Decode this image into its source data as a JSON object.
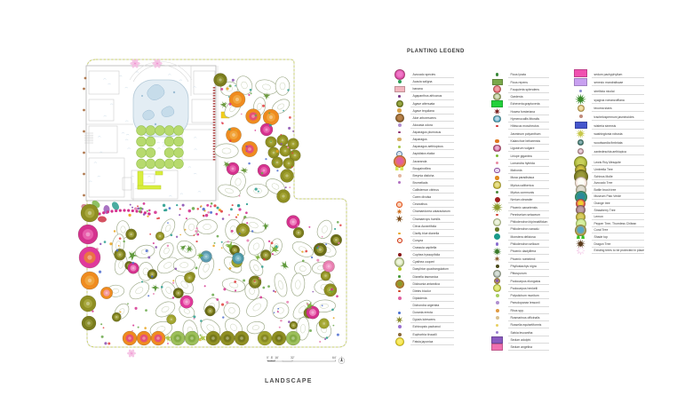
{
  "legend": {
    "title": "PLANTING LEGEND",
    "columns": [
      {
        "entries": [
          {
            "label": "Avocado species",
            "sym": "tree",
            "c": "#d93ba0",
            "c2": "#f078c8",
            "s": 10
          },
          {
            "label": "Acacia saligna",
            "sym": "dot",
            "c": "#2e9e57",
            "s": 4
          },
          {
            "label": "banana",
            "sym": "rect",
            "c": "#f2b6bf",
            "s": 10
          },
          {
            "label": "Agapanthus africanus",
            "sym": "dot",
            "c": "#7a3a8a",
            "s": 2.5
          },
          {
            "label": "Agave attenuata",
            "sym": "tree",
            "c": "#6b7c1f",
            "c2": "#9aa844",
            "s": 6
          },
          {
            "label": "Agave tequilana",
            "sym": "dot",
            "c": "#d9a24a",
            "s": 4.5
          },
          {
            "label": "Aloe arborescens",
            "sym": "tree",
            "c": "#8a5a2a",
            "c2": "#b8824a",
            "s": 8
          },
          {
            "label": "Alocasia odora",
            "sym": "dot",
            "c": "#b18fd0",
            "s": 4
          },
          {
            "label": "Asparagus plumosus",
            "sym": "dot",
            "c": "#8a2a6a",
            "s": 2.5
          },
          {
            "label": "Asparagus",
            "sym": "dot",
            "c": "#d8b06a",
            "s": 4.5
          },
          {
            "label": "Asparagus aethiopicus",
            "sym": "dot",
            "c": "#a8c84a",
            "s": 3.5
          },
          {
            "label": "Aspidistra elatior",
            "sym": "ring",
            "c": "#5b7fa6",
            "c2": "#d8e4ee",
            "s": 5
          },
          {
            "label": "Jacaranda",
            "sym": "tree",
            "c": "#e8821e",
            "c2": "#e060a0",
            "s": 12
          },
          {
            "label": "Bougainvillea",
            "sym": "sq2",
            "c": "#d7e85a",
            "s": 9
          },
          {
            "label": "Breynia disticha",
            "sym": "dot",
            "c": "#e3b8a0",
            "s": 4
          },
          {
            "label": "Bromeliads",
            "sym": "dot",
            "c": "#b06fc0",
            "s": 3
          },
          {
            "label": "Callistemon citrinus",
            "sym": "none",
            "c": "#888888",
            "s": 0
          },
          {
            "label": "Carex divulsa",
            "sym": "none",
            "c": "#888888",
            "s": 0
          },
          {
            "label": "Ceanothus",
            "sym": "ring",
            "c": "#e04a10",
            "c2": "#f8d0b8",
            "s": 4.5
          },
          {
            "label": "Chamaedorea cataractarum",
            "sym": "star",
            "c": "#d07020",
            "s": 7
          },
          {
            "label": "Chamaerops humilis",
            "sym": "star",
            "c": "#7a4a1a",
            "s": 9
          },
          {
            "label": "Citrus Aurantifolia",
            "sym": "none",
            "c": "#888888",
            "s": 0
          },
          {
            "label": "Clarity blue dianella",
            "sym": "dot",
            "c": "#e8a21a",
            "s": 2.5
          },
          {
            "label": "Conyza",
            "sym": "ring",
            "c": "#d03010",
            "c2": "#f8e0d0",
            "s": 4
          },
          {
            "label": "Crassula capitella",
            "sym": "none",
            "c": "#888888",
            "s": 0
          },
          {
            "label": "Cuphea hyssopifolia",
            "sym": "dot",
            "c": "#8a1a1a",
            "s": 4
          },
          {
            "label": "Cyathea cooperi",
            "sym": "tree",
            "c": "#b8cc8a",
            "c2": "#eef4dc",
            "s": 9
          },
          {
            "label": "Dasylirion quadrangulatum",
            "sym": "dot",
            "c": "#b8c820",
            "s": 4
          },
          {
            "label": "Dianella tasmanica",
            "sym": "dot",
            "c": "#4a9a3a",
            "s": 2.5
          },
          {
            "label": "Dicksonia antarctica",
            "sym": "tree",
            "c": "#c87830",
            "c2": "#8a9a2a",
            "s": 8
          },
          {
            "label": "Dietes bicolor",
            "sym": "dot",
            "c": "#d04020",
            "s": 2.5
          },
          {
            "label": "Dipladenia",
            "sym": "dot",
            "c": "#e060a0",
            "s": 4
          },
          {
            "label": "Dichondra argentea",
            "sym": "none",
            "c": "#888888",
            "s": 0
          },
          {
            "label": "Duranta erecta",
            "sym": "dot",
            "c": "#4a6fd0",
            "s": 3
          },
          {
            "label": "Dypsis lutescens",
            "sym": "star",
            "c": "#8a8a2a",
            "s": 9
          },
          {
            "label": "Echinopsis pachanoi",
            "sym": "dot",
            "c": "#9a6fd0",
            "s": 4
          },
          {
            "label": "Euphorbia tirucalli",
            "sym": "dot",
            "c": "#8a6a3a",
            "s": 4
          },
          {
            "label": "Fatsia japonica",
            "sym": "tree",
            "c": "#f0d820",
            "c2": "#f8ec70",
            "s": 8
          }
        ]
      },
      {
        "entries": [
          {
            "label": "Ficus lyrata",
            "sym": "dot",
            "c": "#3a8a3a",
            "s": 3.5
          },
          {
            "label": "Ficus repens",
            "sym": "rect",
            "c": "#7aa84a",
            "s": 10
          },
          {
            "label": "Fouquieria splendens",
            "sym": "tree",
            "c": "#e05060",
            "c2": "#f0a0a8",
            "s": 7
          },
          {
            "label": "Gardenia",
            "sym": "tree",
            "c": "#9aa86a",
            "c2": "#d8e0c0",
            "s": 6.5
          },
          {
            "label": "Echeveria graptoveria",
            "sym": "rect",
            "c": "#22d03a",
            "s": 11
          },
          {
            "label": "Howea forsteriana",
            "sym": "star",
            "c": "#7a2020",
            "s": 8
          },
          {
            "label": "Hymenocallis littoralis",
            "sym": "tree",
            "c": "#3a9ac0",
            "c2": "#b8d8e8",
            "s": 6.5
          },
          {
            "label": "Hibiscus moscheutos",
            "sym": "dot",
            "c": "#d03030",
            "s": 2.5
          },
          {
            "label": "Jasminum polyanthum",
            "sym": "none",
            "c": "#888888",
            "s": 0
          },
          {
            "label": "Kalanchoe beharensis",
            "sym": "dot",
            "c": "#e07820",
            "s": 4.5
          },
          {
            "label": "Ligustrum vulgare",
            "sym": "tree",
            "c": "#c04080",
            "c2": "#e8b0d0",
            "s": 6.5
          },
          {
            "label": "Liriope gigantea",
            "sym": "dot",
            "c": "#7ab830",
            "s": 3.5
          },
          {
            "label": "Lomandra hybrida",
            "sym": "dot",
            "c": "#e88aa0",
            "s": 3
          },
          {
            "label": "Mahonia",
            "sym": "ring",
            "c": "#8a4a9a",
            "c2": "#e8d8f0",
            "s": 4.5
          },
          {
            "label": "Musa paradisiaca",
            "sym": "dot",
            "c": "#e08a20",
            "s": 4.5
          },
          {
            "label": "Myrica californica",
            "sym": "tree",
            "c": "#c8b830",
            "c2": "#e8e090",
            "s": 6.5
          },
          {
            "label": "Myrtus communis",
            "sym": "dot",
            "c": "#4a8a3a",
            "s": 3
          },
          {
            "label": "Nerium oleander",
            "sym": "dot",
            "c": "#a02020",
            "s": 6
          },
          {
            "label": "Phoenix canariensis",
            "sym": "burst",
            "c": "#8a9a2a",
            "s": 13
          },
          {
            "label": "Pennisetum setaceum",
            "sym": "dot",
            "c": "#d04030",
            "s": 2.5
          },
          {
            "label": "Philodendron bipinnatifidum",
            "sym": "tree",
            "c": "#c8d8a8",
            "c2": "#eef4e0",
            "s": 7
          },
          {
            "label": "Philodendron xanadu",
            "sym": "dot",
            "c": "#6a7a2a",
            "s": 4.5
          },
          {
            "label": "Monstera deliciosa",
            "sym": "dot",
            "c": "#1a9a8a",
            "s": 7.5
          },
          {
            "label": "Philodendron selloum",
            "sym": "dot",
            "c": "#8a6fd0",
            "s": 3.5
          },
          {
            "label": "Phoenix dactylifera",
            "sym": "burst",
            "c": "#3a7a2a",
            "s": 10
          },
          {
            "label": "Phoenix roebelenii",
            "sym": "star",
            "c": "#8a5a2a",
            "s": 7
          },
          {
            "label": "Phyllostachys nigra",
            "sym": "dot",
            "c": "#4a4a1a",
            "s": 4
          },
          {
            "label": "Pittosporum",
            "sym": "tree",
            "c": "#9aa8a0",
            "c2": "#d8e0d8",
            "s": 7
          },
          {
            "label": "Podocarpus elongatus",
            "sym": "tree",
            "c": "#c8a830",
            "c2": "#8a5ab0",
            "s": 5.5
          },
          {
            "label": "Podocarpus henkelii",
            "sym": "tree",
            "c": "#c8d040",
            "c2": "#e4ec84",
            "s": 7
          },
          {
            "label": "Polystichum munitum",
            "sym": "dot",
            "c": "#a8d060",
            "s": 4
          },
          {
            "label": "Pseudopanax lessonii",
            "sym": "dot",
            "c": "#b08fd0",
            "s": 4
          },
          {
            "label": "Rhus spp.",
            "sym": "dot",
            "c": "#e09a40",
            "s": 4
          },
          {
            "label": "Rosmarinus officinalis",
            "sym": "dot",
            "c": "#d8c090",
            "s": 4
          },
          {
            "label": "Russelia equisetiformis",
            "sym": "dot",
            "c": "#e8d060",
            "s": 3
          },
          {
            "label": "Salvia leucantha",
            "sym": "dot",
            "c": "#9a7fd0",
            "s": 3.5
          },
          {
            "label": "Sedum adolphi",
            "sym": "rect",
            "c": "#8a5ac0",
            "s": 11
          },
          {
            "label": "Sedum angelina",
            "sym": "rect",
            "c": "#f070b0",
            "s": 11
          }
        ]
      },
      {
        "entries": [
          {
            "label": "sedum pachyphyllum",
            "sym": "rect",
            "c": "#f050b0",
            "s": 13
          },
          {
            "label": "senecio mandraliscae",
            "sym": "rect",
            "c": "#c8a0f0",
            "s": 13
          },
          {
            "label": "strelitzia nicolai",
            "sym": "dot",
            "c": "#8a8fd0",
            "s": 3
          },
          {
            "label": "syagrus romanzoffiana",
            "sym": "burst",
            "c": "#3a8a2a",
            "s": 13
          },
          {
            "label": "tecoma stans",
            "sym": "tree",
            "c": "#d8b060",
            "c2": "#f0e0a8",
            "s": 6
          },
          {
            "label": "trachelospermum jasminoides",
            "sym": "dot",
            "c": "#c08a7a",
            "s": 4
          },
          {
            "label": "wisteria sinensis",
            "sym": "rect",
            "c": "#4455cc",
            "s": 12
          },
          {
            "label": "washingtonia robusta",
            "sym": "burst",
            "c": "#c8c84a",
            "s": 11
          },
          {
            "label": "woodwardia fimbriata",
            "sym": "tree",
            "c": "#2a6a6a",
            "c2": "#88b0b0",
            "s": 5.5
          },
          {
            "label": "zantedeschia aethiopica",
            "sym": "tree",
            "c": "#c08aa0",
            "c2": "#e8d0d8",
            "s": 5
          },
          {
            "label": "Lewis Roy Mesquite",
            "sym": "tree",
            "c": "#9aa82a",
            "c2": "#c8d05a",
            "s": 13
          },
          {
            "label": "Umbrella Tree",
            "sym": "tree",
            "c": "#8a8a2a",
            "c2": "#d0c040",
            "s": 11
          },
          {
            "label": "Schinus Molle",
            "sym": "tree",
            "c": "#6a6a1a",
            "c2": "#9a9a3a",
            "s": 14
          },
          {
            "label": "Avocado Tree",
            "sym": "tree",
            "c": "#f0d8d0",
            "c2": "#fefef8",
            "s": 12
          },
          {
            "label": "Bottle brush tree",
            "sym": "tree",
            "c": "#c0b8a8",
            "c2": "#e0dcd0",
            "s": 10
          },
          {
            "label": "Museum Palo Verde",
            "sym": "tree",
            "c": "#3a9a6a",
            "c2": "#2a8a9a",
            "s": 12
          },
          {
            "label": "Orange tree",
            "sym": "tree",
            "c": "#e03060",
            "c2": "#f0d030",
            "s": 9
          },
          {
            "label": "Strawberry Tree",
            "sym": "tree",
            "c": "#9a6a7a",
            "c2": "#c0a0a8",
            "s": 9
          },
          {
            "label": "Lemon",
            "sym": "tree",
            "c": "#b8a830",
            "c2": "#d8cc60",
            "s": 9
          },
          {
            "label": "Pepper Tree, Thornless Chilean",
            "sym": "tree",
            "c": "#c0e080",
            "c2": "#d8f0a0",
            "s": 10
          },
          {
            "label": "Coral Tree",
            "sym": "tree",
            "c": "#d0a030",
            "c2": "#58a8c8",
            "s": 11
          },
          {
            "label": "Shade top",
            "sym": "shade",
            "c": "#3ac020",
            "s": 9
          },
          {
            "label": "Dragon Tree",
            "sym": "burst",
            "c": "#5a3a1a",
            "s": 11
          },
          {
            "label": "Existing trees to be protected in place",
            "sym": "blossom",
            "c": "#f0b8e0",
            "s": 10
          }
        ]
      }
    ]
  },
  "titleblock": {
    "sheet_title": "LANDSCAPE",
    "scale_labels": [
      "0'",
      "8'",
      "16'",
      "32'",
      "64'"
    ]
  },
  "plan_colors": {
    "boundary_dash": "#c9d44c",
    "building_line": "#b5b5b5",
    "pool_fill": "#e3edf4",
    "courtyard_tree": "#b7da6e",
    "olive_canopy": "#8f8f22",
    "orange_canopy": "#ef8b1f",
    "magenta_canopy": "#d5328f",
    "blossom_pink": "#f6bfe3"
  }
}
